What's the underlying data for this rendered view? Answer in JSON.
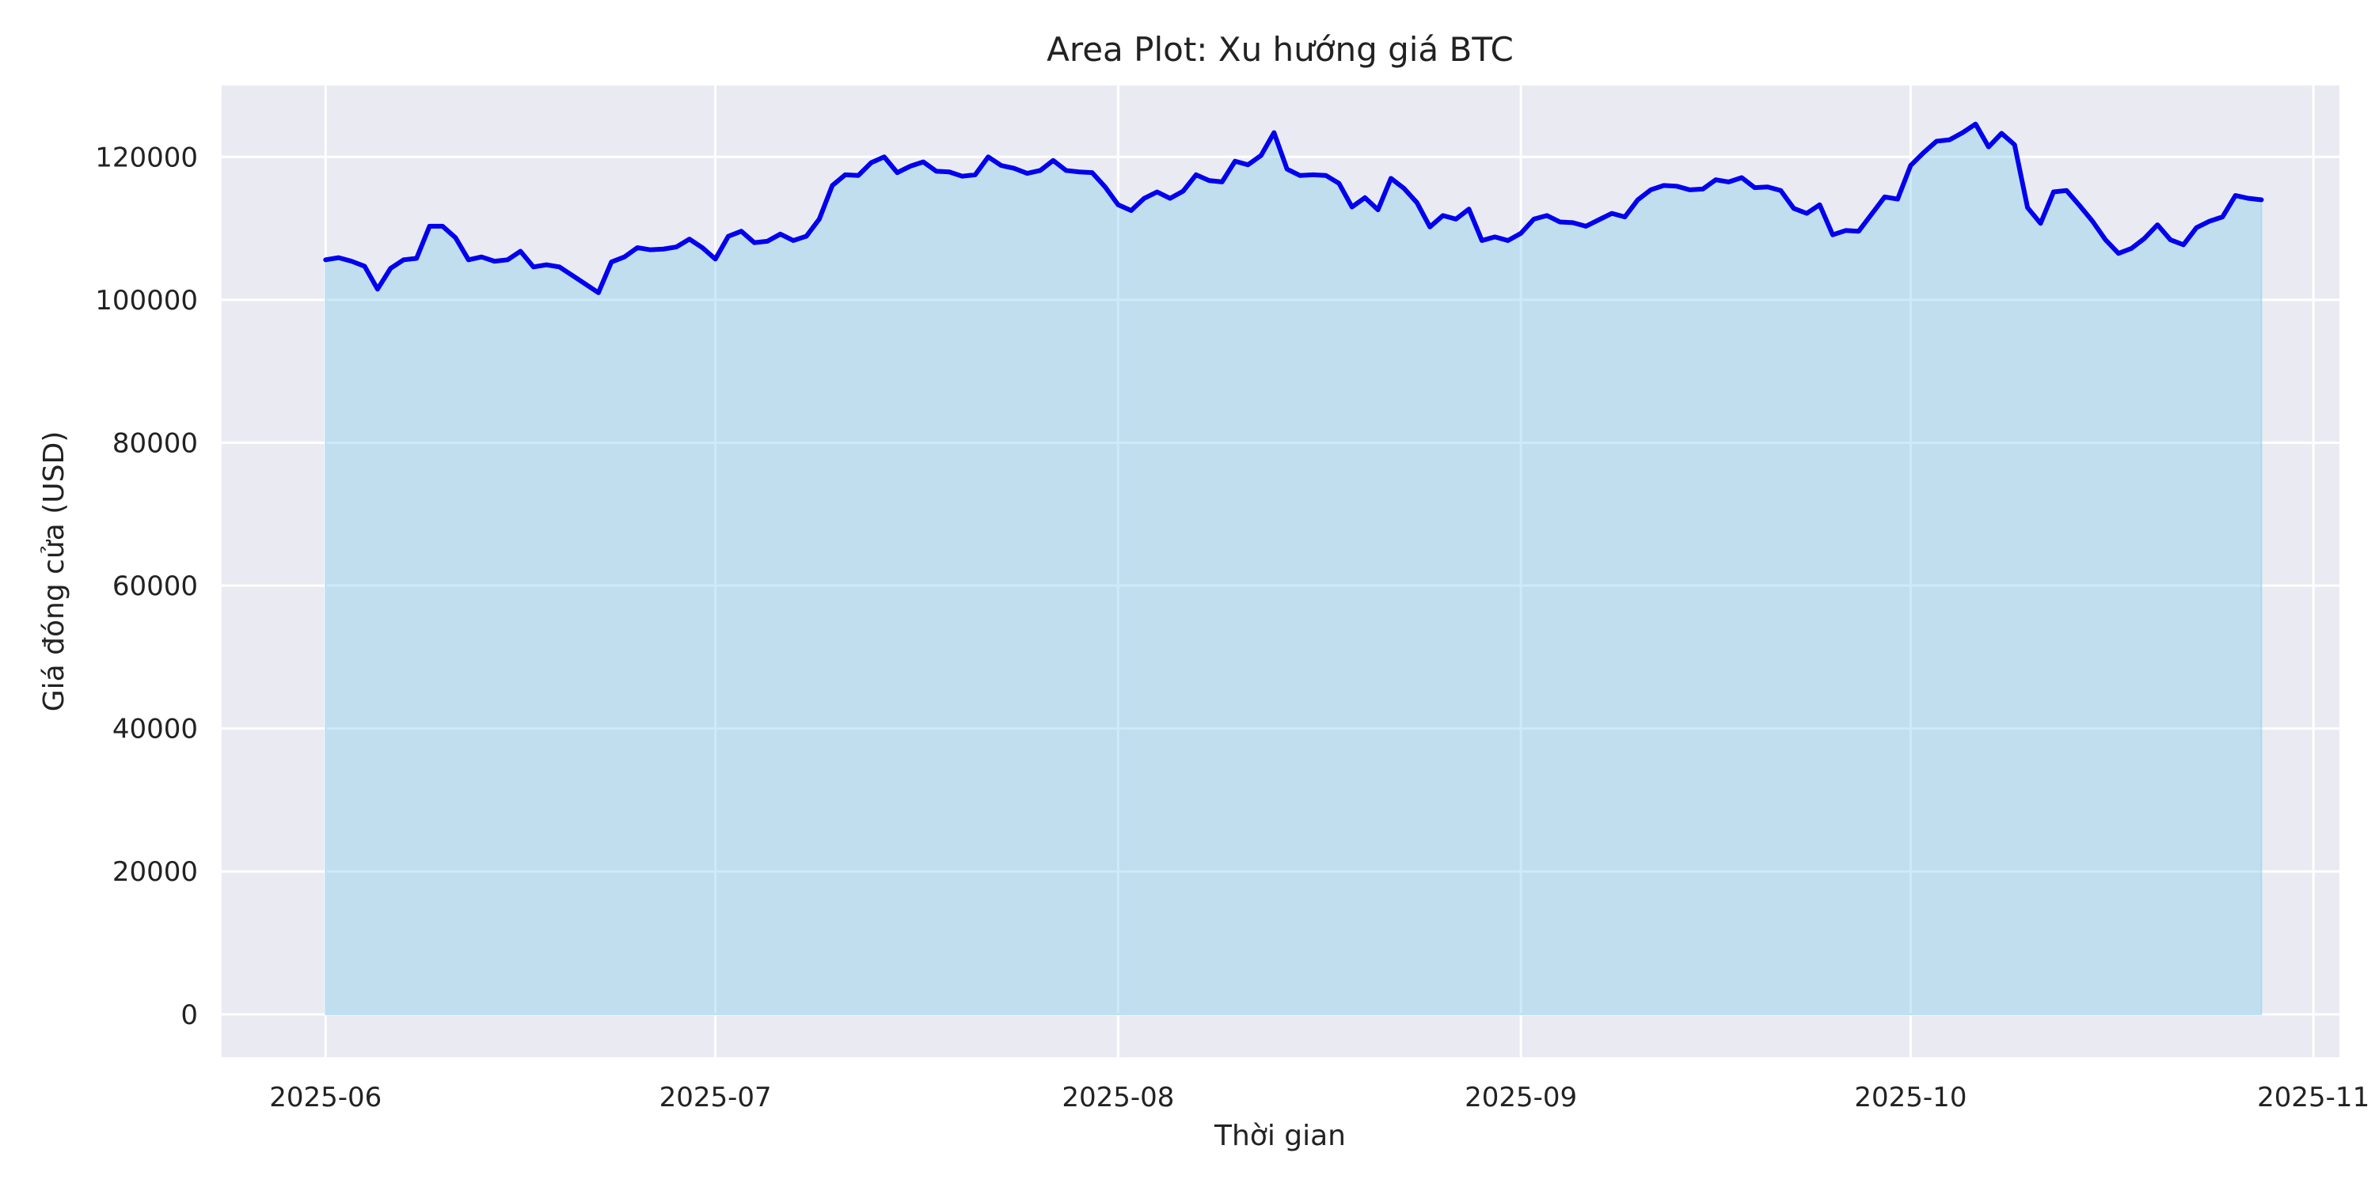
{
  "chart_data": {
    "type": "area",
    "title": "Area Plot: Xu hướng giá BTC",
    "xlabel": "Thời gian",
    "ylabel": "Giá đóng cửa (USD)",
    "x_start": "2025-06-01",
    "x_end": "2025-10-28",
    "xlim": [
      "2025-05-24",
      "2025-11-03"
    ],
    "ylim": [
      -6000,
      130000
    ],
    "x_ticks": [
      "2025-06",
      "2025-07",
      "2025-08",
      "2025-09",
      "2025-10",
      "2025-11"
    ],
    "y_ticks": [
      0,
      20000,
      40000,
      60000,
      80000,
      100000,
      120000
    ],
    "grid": true,
    "legend": "none",
    "colors": {
      "line": "#0000ee",
      "fill": "#87ceeb",
      "plot_bg": "#eaeaf2",
      "grid": "#ffffff"
    },
    "series": [
      {
        "values": [
          105600,
          105900,
          105400,
          104700,
          101500,
          104400,
          105600,
          105800,
          110300,
          110300,
          108700,
          105600,
          106000,
          105400,
          105600,
          106800,
          104600,
          104900,
          104600,
          103400,
          102200,
          101000,
          105300,
          106000,
          107300,
          107000,
          107100,
          107400,
          108500,
          107300,
          105700,
          108900,
          109600,
          108000,
          108200,
          109200,
          108300,
          108900,
          111300,
          116000,
          117500,
          117400,
          119200,
          120000,
          117800,
          118700,
          119300,
          118000,
          117900,
          117300,
          117500,
          120000,
          118800,
          118400,
          117700,
          118100,
          119500,
          118100,
          117900,
          117800,
          115800,
          113300,
          112500,
          114200,
          115100,
          114200,
          115200,
          117500,
          116700,
          116500,
          119400,
          118900,
          120200,
          123400,
          118300,
          117400,
          117500,
          117400,
          116300,
          113000,
          114300,
          112600,
          117000,
          115600,
          113600,
          110200,
          111800,
          111300,
          112700,
          108300,
          108800,
          108300,
          109300,
          111300,
          111800,
          110900,
          110800,
          110300,
          111200,
          112100,
          111600,
          114000,
          115400,
          116000,
          115900,
          115400,
          115500,
          116800,
          116500,
          117100,
          115700,
          115800,
          115300,
          112800,
          112100,
          113300,
          109100,
          109700,
          109600,
          112000,
          114400,
          114100,
          118800,
          120600,
          122200,
          122400,
          123400,
          124600,
          121400,
          123300,
          121700,
          112900,
          110700,
          115100,
          115300,
          113200,
          111000,
          108400,
          106500,
          107200,
          108600,
          110500,
          108400,
          107700,
          110100,
          111000,
          111600,
          114600,
          114200,
          114000
        ]
      }
    ]
  }
}
